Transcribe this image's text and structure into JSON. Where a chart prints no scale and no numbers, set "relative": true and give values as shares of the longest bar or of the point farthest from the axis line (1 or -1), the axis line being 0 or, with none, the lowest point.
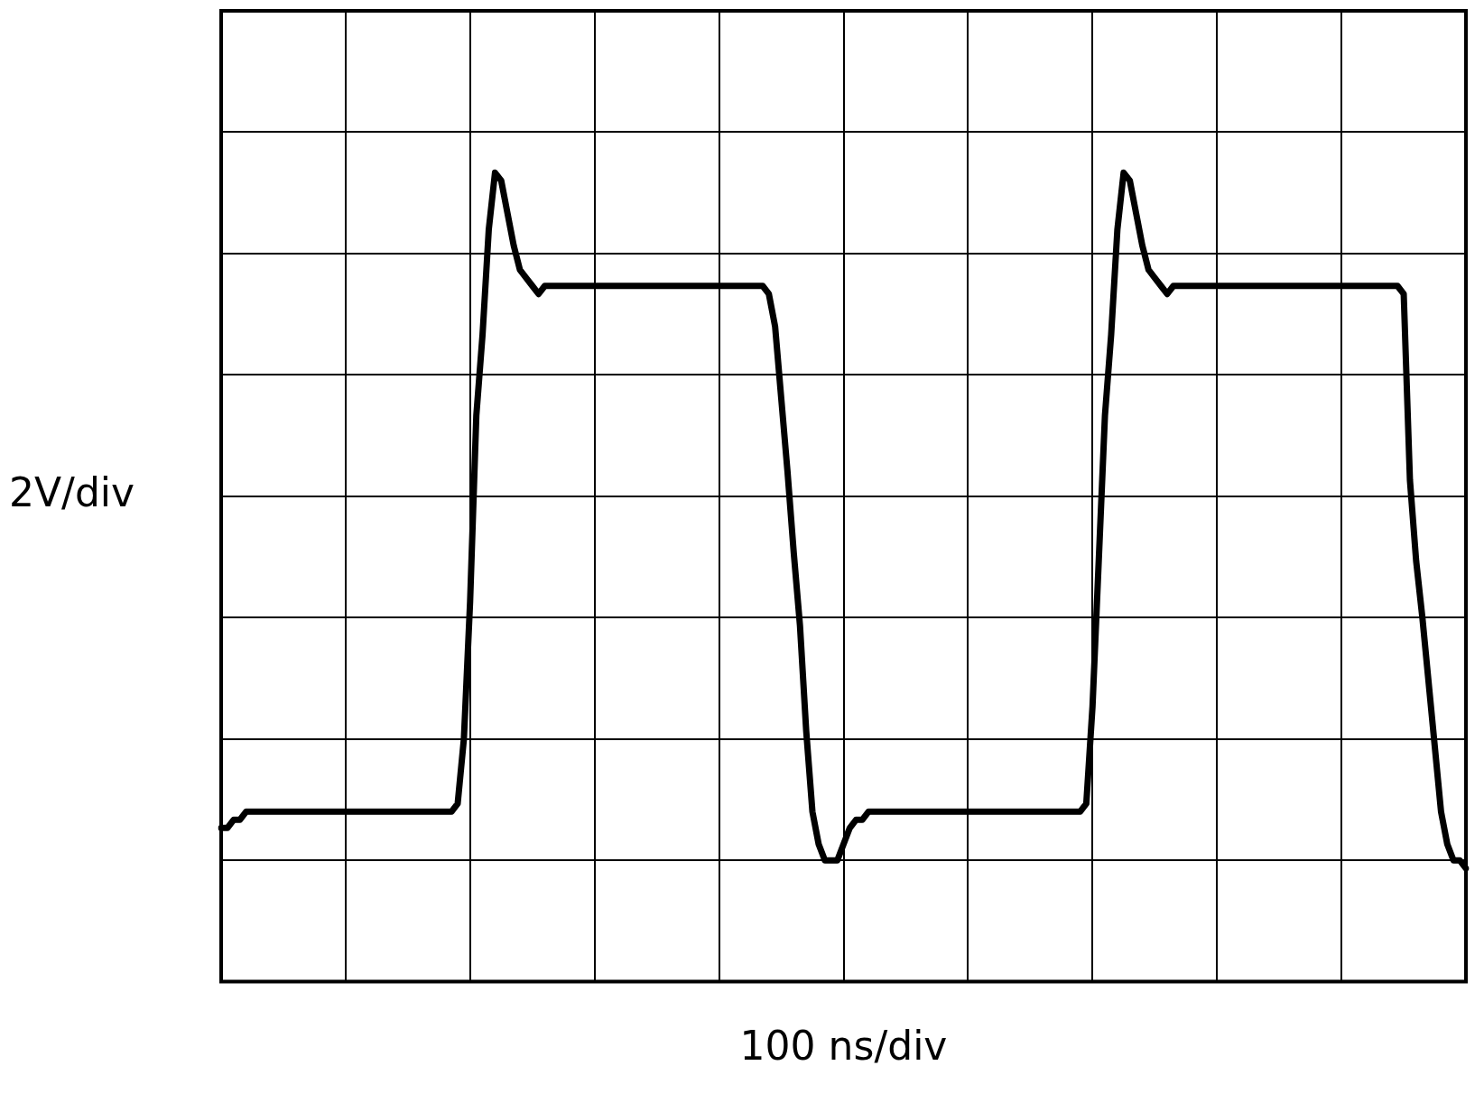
{
  "chart_data": {
    "type": "line",
    "xlabel": "100 ns/div",
    "ylabel": "2V/div",
    "relative": true,
    "grid": true,
    "legend": false,
    "marker": "none",
    "line_style": "solid",
    "categories": [
      null,
      null,
      null,
      null,
      null,
      null,
      null,
      null,
      null,
      null,
      null,
      null,
      null,
      null,
      null,
      null,
      null,
      null,
      null,
      null,
      null,
      null,
      null,
      null,
      null,
      null,
      null,
      null,
      null,
      null,
      null,
      null,
      null,
      null,
      null,
      null,
      null,
      null,
      null,
      null,
      null,
      null,
      null,
      null,
      null,
      null,
      null,
      null,
      null,
      null,
      null,
      null,
      null,
      null,
      null,
      null,
      null,
      null,
      null,
      null,
      null,
      null,
      null,
      null,
      null,
      null,
      null,
      null,
      null,
      null,
      null,
      null,
      null,
      null,
      null,
      null,
      null,
      null,
      null,
      null,
      null,
      null,
      null,
      null,
      null,
      null,
      null,
      null,
      null,
      null,
      null,
      null,
      null,
      null,
      null,
      null,
      null,
      null,
      null,
      null,
      null,
      null,
      null,
      null,
      null,
      null,
      null,
      null,
      null,
      null,
      null,
      null,
      null,
      null,
      null,
      null,
      null,
      null,
      null,
      null,
      null,
      null,
      null,
      null,
      null,
      null,
      null,
      null,
      null,
      null,
      null,
      null,
      null,
      null,
      null,
      null,
      null,
      null,
      null,
      null,
      null,
      null,
      null,
      null,
      null,
      null,
      null,
      null,
      null,
      null,
      null,
      null,
      null,
      null,
      null,
      null,
      null,
      null,
      null,
      null,
      null,
      null,
      null,
      null,
      null,
      null,
      null,
      null,
      null,
      null,
      null,
      null,
      null,
      null,
      null,
      null,
      null,
      null,
      null,
      null,
      null,
      null,
      null,
      null,
      null,
      null,
      null,
      null,
      null,
      null,
      null,
      null,
      null,
      null,
      null,
      null,
      null,
      null,
      null,
      null,
      null
    ],
    "series": [
      {
        "color": "#000000",
        "values": [
          0.19,
          0.19,
          0.2,
          0.2,
          0.21,
          0.21,
          0.21,
          0.21,
          0.21,
          0.21,
          0.21,
          0.21,
          0.21,
          0.21,
          0.21,
          0.21,
          0.21,
          0.21,
          0.21,
          0.21,
          0.21,
          0.21,
          0.21,
          0.21,
          0.21,
          0.21,
          0.21,
          0.21,
          0.21,
          0.21,
          0.21,
          0.21,
          0.21,
          0.21,
          0.21,
          0.21,
          0.21,
          0.21,
          0.22,
          0.3,
          0.47,
          0.7,
          0.8,
          0.93,
          1,
          0.99,
          0.95,
          0.91,
          0.88,
          0.87,
          0.86,
          0.85,
          0.86,
          0.86,
          0.86,
          0.86,
          0.86,
          0.86,
          0.86,
          0.86,
          0.86,
          0.86,
          0.86,
          0.86,
          0.86,
          0.86,
          0.86,
          0.86,
          0.86,
          0.86,
          0.86,
          0.86,
          0.86,
          0.86,
          0.86,
          0.86,
          0.86,
          0.86,
          0.86,
          0.86,
          0.86,
          0.86,
          0.86,
          0.86,
          0.86,
          0.86,
          0.86,
          0.86,
          0.85,
          0.81,
          0.72,
          0.63,
          0.53,
          0.44,
          0.31,
          0.21,
          0.17,
          0.15,
          0.15,
          0.15,
          0.17,
          0.19,
          0.2,
          0.2,
          0.21,
          0.21,
          0.21,
          0.21,
          0.21,
          0.21,
          0.21,
          0.21,
          0.21,
          0.21,
          0.21,
          0.21,
          0.21,
          0.21,
          0.21,
          0.21,
          0.21,
          0.21,
          0.21,
          0.21,
          0.21,
          0.21,
          0.21,
          0.21,
          0.21,
          0.21,
          0.21,
          0.21,
          0.21,
          0.21,
          0.21,
          0.21,
          0.21,
          0.21,
          0.21,
          0.22,
          0.34,
          0.52,
          0.7,
          0.8,
          0.93,
          1,
          0.99,
          0.95,
          0.91,
          0.88,
          0.87,
          0.86,
          0.85,
          0.86,
          0.86,
          0.86,
          0.86,
          0.86,
          0.86,
          0.86,
          0.86,
          0.86,
          0.86,
          0.86,
          0.86,
          0.86,
          0.86,
          0.86,
          0.86,
          0.86,
          0.86,
          0.86,
          0.86,
          0.86,
          0.86,
          0.86,
          0.86,
          0.86,
          0.86,
          0.86,
          0.86,
          0.86,
          0.86,
          0.86,
          0.86,
          0.86,
          0.86,
          0.86,
          0.86,
          0.86,
          0.85,
          0.62,
          0.52,
          0.45,
          0.37,
          0.29,
          0.21,
          0.17,
          0.15,
          0.15,
          0.14
        ]
      }
    ]
  }
}
